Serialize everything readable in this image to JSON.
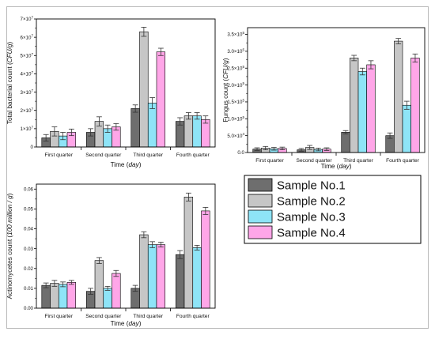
{
  "colors": {
    "Sample No.1": "#6e6e6e",
    "Sample No.2": "#c6c6c6",
    "Sample No.3": "#8ee4f7",
    "Sample No.4": "#ffa6e8",
    "axis": "#000000",
    "error_bar": "#333333",
    "frame": "#b9b9b9"
  },
  "legend": {
    "placement": "center-right",
    "entries": [
      "Sample No.1",
      "Sample No.2",
      "Sample No.3",
      "Sample No.4"
    ]
  },
  "chart_data": [
    {
      "type": "bar",
      "id": "bacteria",
      "categories": [
        "First quarter",
        "Second quarter",
        "Third quarter",
        "Fourth quarter"
      ],
      "xlabel": "Time",
      "xlabel_unit": "day",
      "ylabel": "Total bacterial count",
      "ylabel_unit": "CFU/g",
      "ylim": [
        0,
        70000000
      ],
      "yticks": [
        {
          "value": 0,
          "mant": "0",
          "exp": ""
        },
        {
          "value": 10000000,
          "mant": "1×10",
          "exp": "7"
        },
        {
          "value": 20000000,
          "mant": "2×10",
          "exp": "7"
        },
        {
          "value": 30000000,
          "mant": "3×10",
          "exp": "7"
        },
        {
          "value": 40000000,
          "mant": "4×10",
          "exp": "7"
        },
        {
          "value": 50000000,
          "mant": "5×10",
          "exp": "7"
        },
        {
          "value": 60000000,
          "mant": "6×10",
          "exp": "7"
        },
        {
          "value": 70000000,
          "mant": "7×10",
          "exp": "7"
        }
      ],
      "series": [
        {
          "name": "Sample No.1",
          "values": [
            5000000,
            8000000,
            21000000,
            14000000
          ],
          "errors": [
            1800000,
            2000000,
            2000000,
            2000000
          ]
        },
        {
          "name": "Sample No.2",
          "values": [
            8500000,
            14000000,
            63000000,
            17000000
          ],
          "errors": [
            2500000,
            2500000,
            2500000,
            1800000
          ]
        },
        {
          "name": "Sample No.3",
          "values": [
            6000000,
            10000000,
            24000000,
            17000000
          ],
          "errors": [
            2000000,
            2000000,
            3000000,
            1800000
          ]
        },
        {
          "name": "Sample No.4",
          "values": [
            8000000,
            11000000,
            52000000,
            15000000
          ],
          "errors": [
            1800000,
            1800000,
            2000000,
            2000000
          ]
        }
      ]
    },
    {
      "type": "bar",
      "id": "fungus",
      "categories": [
        "First quarter",
        "Second quarter",
        "Third quarter",
        "Fourth quarter"
      ],
      "xlabel": "Time",
      "xlabel_unit": "day",
      "ylabel": "Fungus count",
      "ylabel_unit": "CFU/g",
      "ylim": [
        0,
        370000
      ],
      "yticks": [
        {
          "value": 0,
          "mant": "0.0",
          "exp": ""
        },
        {
          "value": 50000,
          "mant": "5.0×10",
          "exp": "4"
        },
        {
          "value": 100000,
          "mant": "1.0×10",
          "exp": "5"
        },
        {
          "value": 150000,
          "mant": "1.5×10",
          "exp": "5"
        },
        {
          "value": 200000,
          "mant": "2.0×10",
          "exp": "5"
        },
        {
          "value": 250000,
          "mant": "2.5×10",
          "exp": "5"
        },
        {
          "value": 300000,
          "mant": "3.0×10",
          "exp": "5"
        },
        {
          "value": 350000,
          "mant": "3.5×10",
          "exp": "5"
        }
      ],
      "series": [
        {
          "name": "Sample No.1",
          "values": [
            10000,
            8000,
            60000,
            50000
          ],
          "errors": [
            4000,
            4000,
            5000,
            8000
          ]
        },
        {
          "name": "Sample No.2",
          "values": [
            13000,
            15000,
            280000,
            330000
          ],
          "errors": [
            5000,
            6000,
            8000,
            8000
          ]
        },
        {
          "name": "Sample No.3",
          "values": [
            11000,
            9000,
            240000,
            140000
          ],
          "errors": [
            4000,
            4000,
            10000,
            12000
          ]
        },
        {
          "name": "Sample No.4",
          "values": [
            12000,
            10000,
            260000,
            280000
          ],
          "errors": [
            4000,
            4000,
            12000,
            12000
          ]
        }
      ]
    },
    {
      "type": "bar",
      "id": "actinomycetes",
      "categories": [
        "First quarter",
        "Second quarter",
        "Third quarter",
        "Fourth quarter"
      ],
      "xlabel": "Time",
      "xlabel_unit": "day",
      "ylabel": "Actinomycetes count",
      "ylabel_unit": "100 million / g",
      "ylim": [
        0,
        0.0625
      ],
      "yticks": [
        {
          "value": 0,
          "mant": "0.00",
          "exp": ""
        },
        {
          "value": 0.01,
          "mant": "0.01",
          "exp": ""
        },
        {
          "value": 0.02,
          "mant": "0.02",
          "exp": ""
        },
        {
          "value": 0.03,
          "mant": "0.03",
          "exp": ""
        },
        {
          "value": 0.04,
          "mant": "0.04",
          "exp": ""
        },
        {
          "value": 0.05,
          "mant": "0.05",
          "exp": ""
        },
        {
          "value": 0.06,
          "mant": "0.06",
          "exp": ""
        }
      ],
      "series": [
        {
          "name": "Sample No.1",
          "values": [
            0.0115,
            0.0085,
            0.01,
            0.027
          ],
          "errors": [
            0.0012,
            0.0015,
            0.0015,
            0.002
          ]
        },
        {
          "name": "Sample No.2",
          "values": [
            0.0125,
            0.024,
            0.037,
            0.056
          ],
          "errors": [
            0.0015,
            0.0015,
            0.0015,
            0.002
          ]
        },
        {
          "name": "Sample No.3",
          "values": [
            0.012,
            0.01,
            0.032,
            0.0305
          ],
          "errors": [
            0.0012,
            0.001,
            0.0015,
            0.0012
          ]
        },
        {
          "name": "Sample No.4",
          "values": [
            0.013,
            0.0175,
            0.032,
            0.049
          ],
          "errors": [
            0.001,
            0.0015,
            0.0012,
            0.0018
          ]
        }
      ]
    }
  ]
}
